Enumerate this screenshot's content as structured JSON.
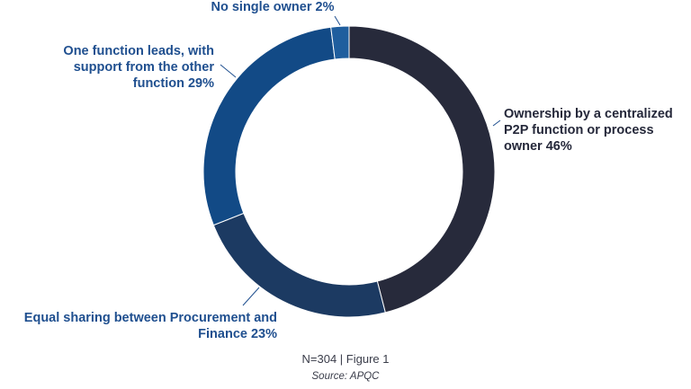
{
  "chart_data": {
    "type": "pie",
    "donut": true,
    "categories": [
      "Ownership by a centralized P2P function or process owner",
      "Equal sharing between Procurement and Finance",
      "One function leads, with support from the other function",
      "No single owner"
    ],
    "values": [
      46,
      23,
      29,
      2
    ],
    "unit": "%",
    "colors": [
      "#272a3b",
      "#1c3a62",
      "#124a86",
      "#1f5e9e"
    ],
    "labels": [
      [
        "Ownership by a centralized",
        "P2P function or process",
        "owner 46%"
      ],
      [
        "Equal sharing between Procurement and",
        "Finance 23%"
      ],
      [
        "One function leads, with",
        "support from the other",
        "function 29%"
      ],
      [
        "No single owner 2%"
      ]
    ],
    "label_colors": [
      "#25283a",
      "#1f4f8f",
      "#1f4f8f",
      "#1f4f8f"
    ],
    "legend": "none"
  },
  "footer": {
    "note": "N=304 | Figure 1",
    "source": "Source: APQC"
  }
}
